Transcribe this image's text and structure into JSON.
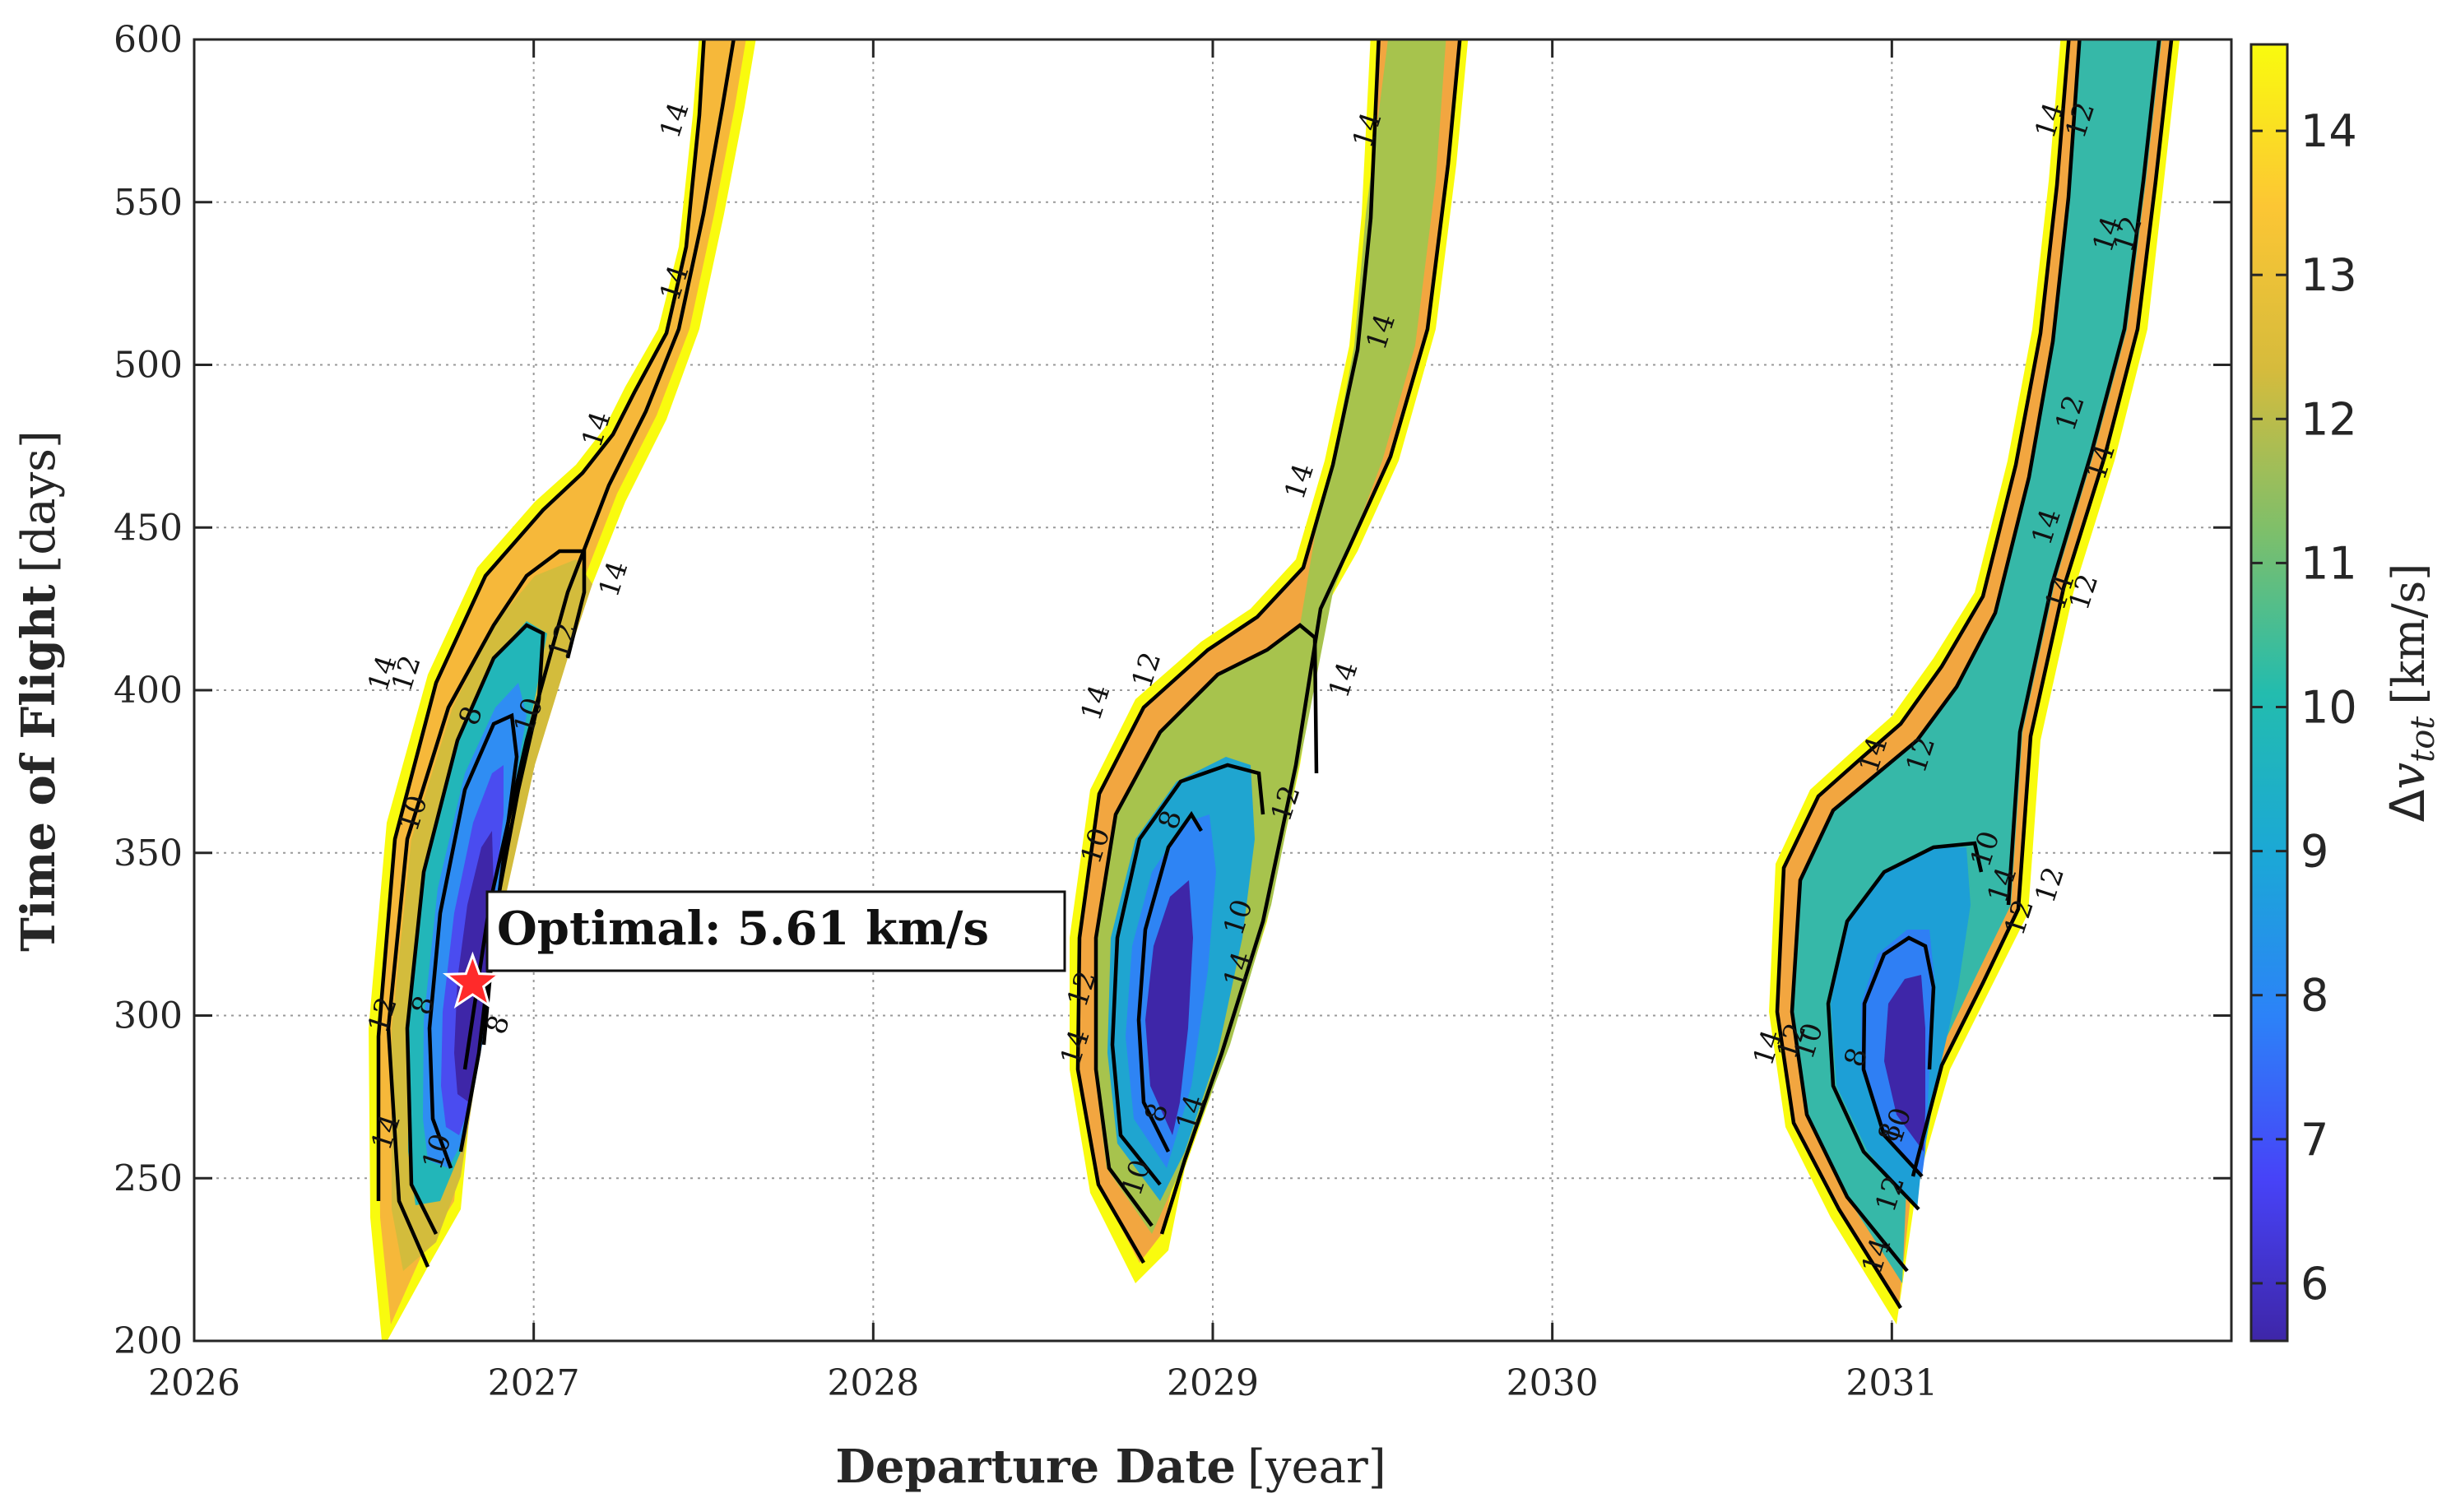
{
  "chart_data": {
    "type": "contour",
    "title": "",
    "xlabel": {
      "bold": "Departure Date",
      "unit": "[year]"
    },
    "ylabel": {
      "bold": "Time of Flight",
      "unit": "[days]"
    },
    "xlim": [
      2026,
      2032
    ],
    "ylim": [
      200,
      600
    ],
    "x_ticks": [
      "2026",
      "2027",
      "2028",
      "2029",
      "2030",
      "2031"
    ],
    "y_ticks": [
      "200",
      "250",
      "300",
      "350",
      "400",
      "450",
      "500",
      "550",
      "600"
    ],
    "grid": true,
    "colorbar": {
      "label": "Δv_tot [km/s]",
      "label_parts": {
        "delta": "Δ",
        "var": "v",
        "sub": "tot",
        "unit": "[km/s]"
      },
      "range": [
        5.6,
        14.6
      ],
      "ticks": [
        "6",
        "7",
        "8",
        "9",
        "10",
        "11",
        "12",
        "13",
        "14"
      ],
      "colormap": [
        "#3e26a8",
        "#4743f8",
        "#2c82f8",
        "#1ba8d6",
        "#23bcae",
        "#7ebf6a",
        "#d6bb3c",
        "#fcc634",
        "#f9fb0e"
      ]
    },
    "contour_levels": [
      8,
      10,
      12,
      14
    ],
    "windows": [
      {
        "name": "window-2026",
        "min_dv": 5.61,
        "min_at": {
          "departure_year": 2026.82,
          "tof_days": 310
        }
      },
      {
        "name": "window-2028",
        "min_dv": 6.4,
        "min_at": {
          "departure_year": 2028.88,
          "tof_days": 305
        }
      },
      {
        "name": "window-2031",
        "min_dv": 6.9,
        "min_at": {
          "departure_year": 2031.0,
          "tof_days": 290
        }
      }
    ],
    "contour_labels": [
      {
        "text": "14",
        "x": 2026.56,
        "y": 405
      },
      {
        "text": "12",
        "x": 2026.63,
        "y": 405
      },
      {
        "text": "8",
        "x": 2026.82,
        "y": 392
      },
      {
        "text": "10",
        "x": 2026.99,
        "y": 392
      },
      {
        "text": "12",
        "x": 2027.09,
        "y": 415
      },
      {
        "text": "14",
        "x": 2027.24,
        "y": 434
      },
      {
        "text": "14",
        "x": 2027.19,
        "y": 480
      },
      {
        "text": "14",
        "x": 2027.42,
        "y": 525
      },
      {
        "text": "14",
        "x": 2027.42,
        "y": 575
      },
      {
        "text": "10",
        "x": 2026.65,
        "y": 362
      },
      {
        "text": "12",
        "x": 2026.56,
        "y": 300
      },
      {
        "text": "8",
        "x": 2026.68,
        "y": 303
      },
      {
        "text": "14",
        "x": 2026.57,
        "y": 264
      },
      {
        "text": "10",
        "x": 2026.72,
        "y": 258
      },
      {
        "text": "8",
        "x": 2026.9,
        "y": 297
      },
      {
        "text": "14",
        "x": 2028.66,
        "y": 396
      },
      {
        "text": "12",
        "x": 2028.81,
        "y": 406
      },
      {
        "text": "14",
        "x": 2029.26,
        "y": 464
      },
      {
        "text": "14",
        "x": 2029.5,
        "y": 510
      },
      {
        "text": "14",
        "x": 2029.46,
        "y": 572
      },
      {
        "text": "14",
        "x": 2029.39,
        "y": 403
      },
      {
        "text": "10",
        "x": 2028.66,
        "y": 352
      },
      {
        "text": "8",
        "x": 2028.88,
        "y": 360
      },
      {
        "text": "12",
        "x": 2029.22,
        "y": 365
      },
      {
        "text": "10",
        "x": 2029.08,
        "y": 330
      },
      {
        "text": "14",
        "x": 2029.08,
        "y": 314
      },
      {
        "text": "12",
        "x": 2028.62,
        "y": 308
      },
      {
        "text": "14",
        "x": 2028.6,
        "y": 290
      },
      {
        "text": "8",
        "x": 2028.84,
        "y": 270
      },
      {
        "text": "10",
        "x": 2028.78,
        "y": 250
      },
      {
        "text": "14",
        "x": 2028.94,
        "y": 270
      },
      {
        "text": "14",
        "x": 2030.95,
        "y": 380
      },
      {
        "text": "12",
        "x": 2031.09,
        "y": 380
      },
      {
        "text": "10",
        "x": 2031.28,
        "y": 351
      },
      {
        "text": "14",
        "x": 2031.33,
        "y": 340
      },
      {
        "text": "12",
        "x": 2031.38,
        "y": 330
      },
      {
        "text": "14",
        "x": 2030.64,
        "y": 290
      },
      {
        "text": "12",
        "x": 2030.71,
        "y": 292
      },
      {
        "text": "10",
        "x": 2030.76,
        "y": 292
      },
      {
        "text": "8",
        "x": 2030.9,
        "y": 287
      },
      {
        "text": "8",
        "x": 2031.0,
        "y": 264
      },
      {
        "text": "10",
        "x": 2031.02,
        "y": 266
      },
      {
        "text": "12",
        "x": 2031.0,
        "y": 245
      },
      {
        "text": "14",
        "x": 2030.96,
        "y": 226
      },
      {
        "text": "14",
        "x": 2031.5,
        "y": 430
      },
      {
        "text": "12",
        "x": 2031.57,
        "y": 430
      },
      {
        "text": "12",
        "x": 2031.53,
        "y": 485
      },
      {
        "text": "14",
        "x": 2031.62,
        "y": 470
      },
      {
        "text": "14",
        "x": 2031.46,
        "y": 450
      },
      {
        "text": "12",
        "x": 2031.47,
        "y": 340
      },
      {
        "text": "14",
        "x": 2031.64,
        "y": 540
      },
      {
        "text": "12",
        "x": 2031.7,
        "y": 540
      },
      {
        "text": "14",
        "x": 2031.47,
        "y": 575
      },
      {
        "text": "12",
        "x": 2031.56,
        "y": 575
      }
    ],
    "annotation": {
      "text": "Optimal: 5.61 km/s",
      "marker": "star",
      "marker_color": "#ff2a2a",
      "x": 2026.82,
      "y": 310
    }
  }
}
